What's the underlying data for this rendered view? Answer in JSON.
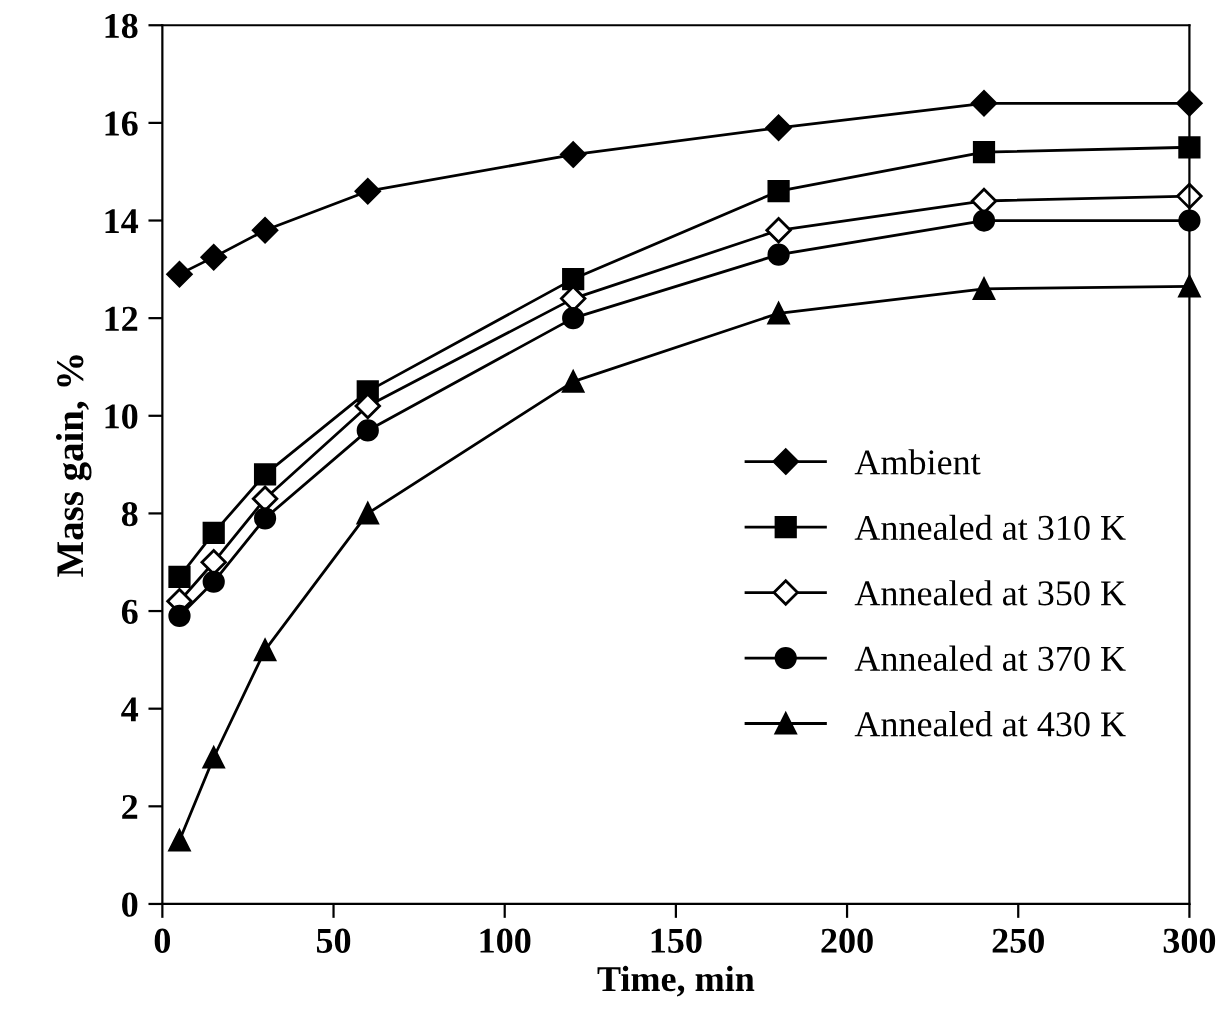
{
  "chart_data": {
    "type": "line",
    "xlabel": "Time, min",
    "ylabel": "Mass gain, %",
    "x": [
      5,
      15,
      30,
      60,
      120,
      180,
      240,
      300
    ],
    "xlim": [
      0,
      300
    ],
    "xticks": [
      0,
      50,
      100,
      150,
      200,
      250,
      300
    ],
    "ylim": [
      0,
      18
    ],
    "yticks": [
      0,
      2,
      4,
      6,
      8,
      10,
      12,
      14,
      16,
      18
    ],
    "grid": false,
    "legend": "right",
    "line_style": "solid",
    "series": [
      {
        "name": "Ambient",
        "color": "#000000",
        "marker": "diamond",
        "values": [
          12.9,
          13.25,
          13.8,
          14.6,
          15.35,
          15.9,
          16.4,
          16.4
        ]
      },
      {
        "name": "Annealed at 310 K",
        "color": "#000000",
        "marker": "square",
        "values": [
          6.7,
          7.6,
          8.8,
          10.5,
          12.8,
          14.6,
          15.4,
          15.5
        ]
      },
      {
        "name": "Annealed at 350 K",
        "color": "#000000",
        "marker": "diamond",
        "values": [
          6.2,
          7.0,
          8.3,
          10.2,
          12.4,
          13.8,
          14.4,
          14.5
        ]
      },
      {
        "name": "Annealed at 370 K",
        "color": "#000000",
        "marker": "circle",
        "values": [
          5.9,
          6.6,
          7.9,
          9.7,
          12.0,
          13.3,
          14.0,
          14.0
        ]
      },
      {
        "name": "Annealed at 430 K",
        "color": "#000000",
        "marker": "triangle",
        "values": [
          1.3,
          3.0,
          5.2,
          8.0,
          10.7,
          12.1,
          12.6,
          12.65
        ]
      }
    ]
  }
}
